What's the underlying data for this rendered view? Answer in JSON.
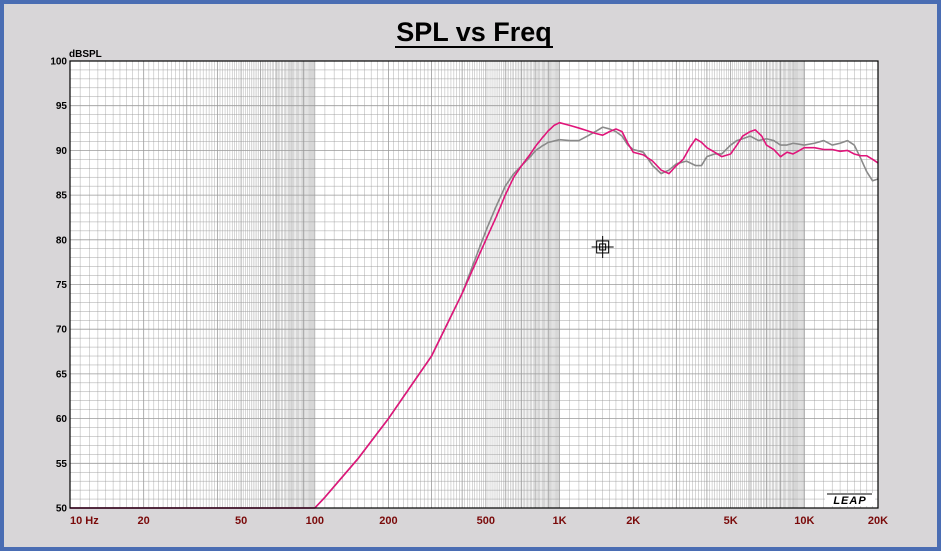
{
  "chart_data": {
    "type": "line",
    "title": "SPL vs Freq",
    "ylabel": "dBSPL",
    "xlabel": "",
    "xscale": "log",
    "xlim": [
      10,
      20000
    ],
    "ylim": [
      50,
      100
    ],
    "grid": true,
    "y_ticks": [
      {
        "value": 100,
        "label": "100"
      },
      {
        "value": 95,
        "label": "95"
      },
      {
        "value": 90,
        "label": "90"
      },
      {
        "value": 85,
        "label": "85"
      },
      {
        "value": 80,
        "label": "80"
      },
      {
        "value": 75,
        "label": "75"
      },
      {
        "value": 70,
        "label": "70"
      },
      {
        "value": 65,
        "label": "65"
      },
      {
        "value": 60,
        "label": "60"
      },
      {
        "value": 55,
        "label": "55"
      },
      {
        "value": 50,
        "label": "50"
      }
    ],
    "x_ticks": [
      {
        "value": 10,
        "label": "10 Hz"
      },
      {
        "value": 20,
        "label": "20"
      },
      {
        "value": 50,
        "label": "50"
      },
      {
        "value": 100,
        "label": "100"
      },
      {
        "value": 200,
        "label": "200"
      },
      {
        "value": 500,
        "label": "500"
      },
      {
        "value": 1000,
        "label": "1K"
      },
      {
        "value": 2000,
        "label": "2K"
      },
      {
        "value": 5000,
        "label": "5K"
      },
      {
        "value": 10000,
        "label": "10K"
      },
      {
        "value": 20000,
        "label": "20K"
      }
    ],
    "series": [
      {
        "color": "#e0157a",
        "points": [
          [
            10,
            50
          ],
          [
            100,
            50
          ],
          [
            110,
            51.2
          ],
          [
            150,
            55.5
          ],
          [
            200,
            60
          ],
          [
            300,
            67
          ],
          [
            400,
            74
          ],
          [
            500,
            80
          ],
          [
            550,
            82.5
          ],
          [
            600,
            85
          ],
          [
            650,
            87
          ],
          [
            700,
            88.3
          ],
          [
            760,
            89.6
          ],
          [
            800,
            90.5
          ],
          [
            850,
            91.4
          ],
          [
            900,
            92.2
          ],
          [
            950,
            92.8
          ],
          [
            1000,
            93.1
          ],
          [
            1100,
            92.8
          ],
          [
            1200,
            92.5
          ],
          [
            1300,
            92.2
          ],
          [
            1400,
            91.9
          ],
          [
            1500,
            91.7
          ],
          [
            1600,
            92.1
          ],
          [
            1700,
            92.4
          ],
          [
            1800,
            92.1
          ],
          [
            1900,
            90.8
          ],
          [
            2000,
            89.8
          ],
          [
            2200,
            89.5
          ],
          [
            2400,
            88.8
          ],
          [
            2600,
            87.8
          ],
          [
            2800,
            87.4
          ],
          [
            3000,
            88.3
          ],
          [
            3200,
            89
          ],
          [
            3400,
            90.3
          ],
          [
            3600,
            91.3
          ],
          [
            3800,
            90.9
          ],
          [
            4000,
            90.3
          ],
          [
            4300,
            89.8
          ],
          [
            4600,
            89.3
          ],
          [
            5000,
            89.6
          ],
          [
            5300,
            90.6
          ],
          [
            5600,
            91.6
          ],
          [
            6000,
            92.1
          ],
          [
            6300,
            92.3
          ],
          [
            6700,
            91.6
          ],
          [
            7000,
            90.6
          ],
          [
            7500,
            90.1
          ],
          [
            8000,
            89.3
          ],
          [
            8500,
            89.8
          ],
          [
            9000,
            89.6
          ],
          [
            10000,
            90.3
          ],
          [
            11000,
            90.3
          ],
          [
            12000,
            90.1
          ],
          [
            13000,
            90.1
          ],
          [
            14000,
            89.9
          ],
          [
            15000,
            90
          ],
          [
            16000,
            89.6
          ],
          [
            17000,
            89.4
          ],
          [
            18000,
            89.4
          ],
          [
            19000,
            89
          ],
          [
            20000,
            88.6
          ]
        ]
      },
      {
        "color": "#8a8a8a",
        "points": [
          [
            10,
            50
          ],
          [
            100,
            50
          ],
          [
            110,
            51.2
          ],
          [
            150,
            55.5
          ],
          [
            200,
            60
          ],
          [
            300,
            67
          ],
          [
            400,
            74
          ],
          [
            500,
            81
          ],
          [
            550,
            83.7
          ],
          [
            600,
            86
          ],
          [
            650,
            87.4
          ],
          [
            700,
            88.3
          ],
          [
            760,
            89.3
          ],
          [
            800,
            90
          ],
          [
            850,
            90.5
          ],
          [
            900,
            90.9
          ],
          [
            1000,
            91.2
          ],
          [
            1100,
            91.1
          ],
          [
            1200,
            91.1
          ],
          [
            1300,
            91.6
          ],
          [
            1400,
            92.1
          ],
          [
            1500,
            92.6
          ],
          [
            1600,
            92.4
          ],
          [
            1700,
            92.1
          ],
          [
            1800,
            91.6
          ],
          [
            1900,
            90.6
          ],
          [
            2000,
            90.1
          ],
          [
            2200,
            89.8
          ],
          [
            2400,
            88.3
          ],
          [
            2600,
            87.4
          ],
          [
            2800,
            87.8
          ],
          [
            3000,
            88.5
          ],
          [
            3300,
            88.8
          ],
          [
            3600,
            88.3
          ],
          [
            3800,
            88.3
          ],
          [
            4000,
            89.3
          ],
          [
            4300,
            89.6
          ],
          [
            4600,
            89.6
          ],
          [
            5000,
            90.6
          ],
          [
            5300,
            91.1
          ],
          [
            5600,
            91.3
          ],
          [
            6000,
            91.6
          ],
          [
            6500,
            91.1
          ],
          [
            7000,
            91.3
          ],
          [
            7500,
            91.1
          ],
          [
            8000,
            90.6
          ],
          [
            8500,
            90.6
          ],
          [
            9000,
            90.8
          ],
          [
            10000,
            90.6
          ],
          [
            11000,
            90.8
          ],
          [
            12000,
            91.1
          ],
          [
            13000,
            90.6
          ],
          [
            14000,
            90.8
          ],
          [
            15000,
            91.1
          ],
          [
            16000,
            90.6
          ],
          [
            17000,
            89.1
          ],
          [
            18000,
            87.6
          ],
          [
            19000,
            86.6
          ],
          [
            20000,
            86.8
          ]
        ]
      }
    ],
    "marker": {
      "x": 1500,
      "y": 79.2
    }
  },
  "logo": {
    "text": "LEAP"
  },
  "colors": {
    "background": "#d8d6d8",
    "plot_background": "#ffffff",
    "grid": "#9a9a9a",
    "frame": "#4a6db3",
    "x_tick_label": "#7a0a0a"
  }
}
